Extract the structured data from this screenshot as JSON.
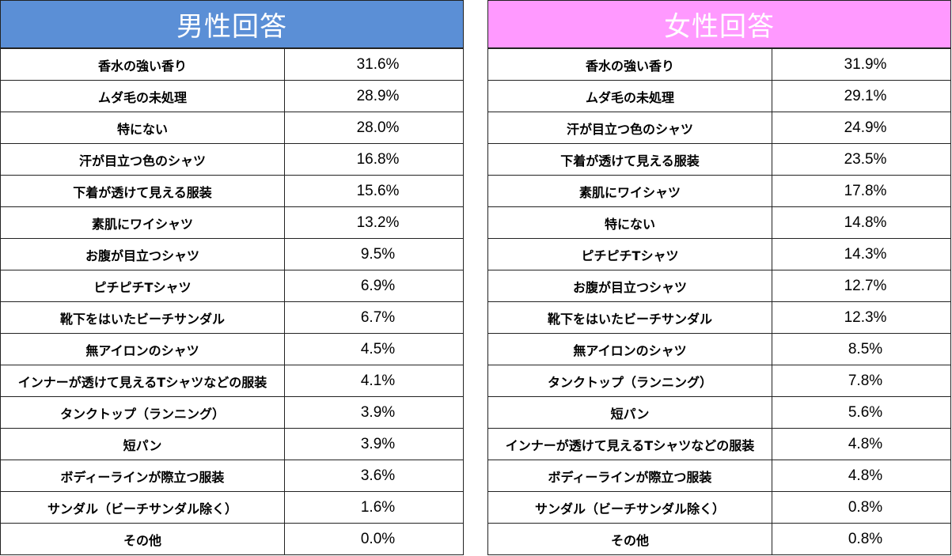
{
  "chart_data": [
    {
      "type": "table",
      "title": "男性回答",
      "header_color": "#5b8fd6",
      "categories": [
        "香水の強い香り",
        "ムダ毛の未処理",
        "特にない",
        "汗が目立つ色のシャツ",
        "下着が透けて見える服装",
        "素肌にワイシャツ",
        "お腹が目立つシャツ",
        "ピチピチTシャツ",
        "靴下をはいたビーチサンダル",
        "無アイロンのシャツ",
        "インナーが透けて見えるTシャツなどの服装",
        "タンクトップ（ランニング）",
        "短パン",
        "ボディーラインが際立つ服装",
        "サンダル（ビーチサンダル除く）",
        "その他"
      ],
      "values": [
        "31.6%",
        "28.9%",
        "28.0%",
        "16.8%",
        "15.6%",
        "13.2%",
        "9.5%",
        "6.9%",
        "6.7%",
        "4.5%",
        "4.1%",
        "3.9%",
        "3.9%",
        "3.6%",
        "1.6%",
        "0.0%"
      ]
    },
    {
      "type": "table",
      "title": "女性回答",
      "header_color": "#ff99ff",
      "categories": [
        "香水の強い香り",
        "ムダ毛の未処理",
        "汗が目立つ色のシャツ",
        "下着が透けて見える服装",
        "素肌にワイシャツ",
        "特にない",
        "ピチピチTシャツ",
        "お腹が目立つシャツ",
        "靴下をはいたビーチサンダル",
        "無アイロンのシャツ",
        "タンクトップ（ランニング）",
        "短パン",
        "インナーが透けて見えるTシャツなどの服装",
        "ボディーラインが際立つ服装",
        "サンダル（ビーチサンダル除く）",
        "その他"
      ],
      "values": [
        "31.9%",
        "29.1%",
        "24.9%",
        "23.5%",
        "17.8%",
        "14.8%",
        "14.3%",
        "12.7%",
        "12.3%",
        "8.5%",
        "7.8%",
        "5.6%",
        "4.8%",
        "4.8%",
        "0.8%",
        "0.8%"
      ]
    }
  ]
}
